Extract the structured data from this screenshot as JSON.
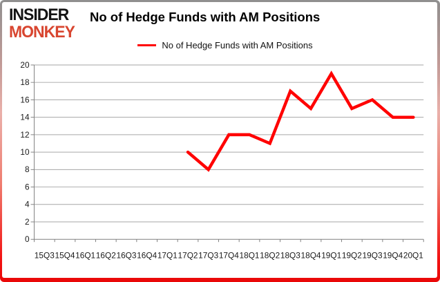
{
  "logo": {
    "line1": "INSIDER",
    "line2": "MONKEY"
  },
  "header": {
    "title": "No of Hedge Funds with AM Positions"
  },
  "legend": {
    "label": "No of Hedge Funds with AM Positions"
  },
  "chart_data": {
    "type": "line",
    "title": "No of Hedge Funds with AM Positions",
    "categories": [
      "15Q3",
      "15Q4",
      "16Q1",
      "16Q2",
      "16Q3",
      "16Q4",
      "17Q1",
      "17Q2",
      "17Q3",
      "17Q4",
      "18Q1",
      "18Q2",
      "18Q3",
      "18Q4",
      "19Q1",
      "19Q2",
      "19Q3",
      "19Q4",
      "20Q1"
    ],
    "series": [
      {
        "name": "No of Hedge Funds with AM Positions",
        "color": "#ff0000",
        "values": [
          null,
          null,
          null,
          null,
          null,
          null,
          null,
          10,
          8,
          12,
          12,
          11,
          17,
          15,
          19,
          15,
          16,
          14,
          14
        ]
      }
    ],
    "xlabel": "",
    "ylabel": "",
    "ylim": [
      0,
      20
    ],
    "ytick_step": 2,
    "grid": true,
    "legend_position": "top-center"
  },
  "colors": {
    "line": "#ff0000",
    "gridline": "#a6a6a6",
    "axis": "#808080",
    "logo_red": "#d8452f",
    "frame_top": "#8f8f8f",
    "frame_bottom": "#e90808"
  }
}
